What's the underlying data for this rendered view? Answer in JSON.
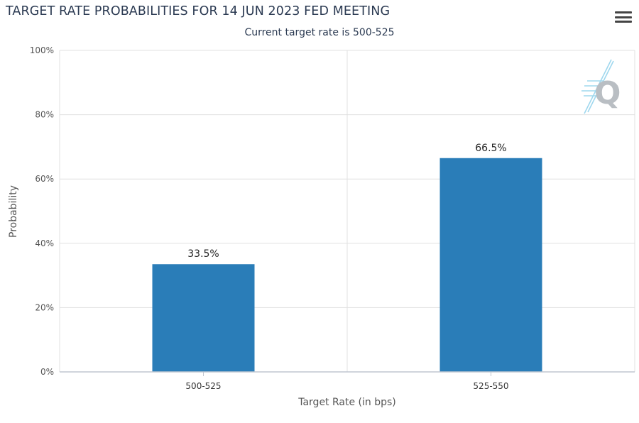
{
  "header": {
    "title": "TARGET RATE PROBABILITIES FOR 14 JUN 2023 FED MEETING",
    "subtitle": "Current target rate is 500-525",
    "menu_icon": "hamburger-menu-icon",
    "logo_text": "Q"
  },
  "chart_data": {
    "type": "bar",
    "title": "TARGET RATE PROBABILITIES FOR 14 JUN 2023 FED MEETING",
    "subtitle": "Current target rate is 500-525",
    "categories": [
      "500-525",
      "525-550"
    ],
    "values": [
      33.5,
      66.5
    ],
    "data_labels": [
      "33.5%",
      "66.5%"
    ],
    "xlabel": "Target Rate (in bps)",
    "ylabel": "Probability",
    "ylim": [
      0,
      100
    ],
    "yticks": [
      0,
      20,
      40,
      60,
      80,
      100
    ],
    "ytick_labels": [
      "0%",
      "20%",
      "40%",
      "60%",
      "80%",
      "100%"
    ],
    "grid": true,
    "bar_color": "#2a7db8",
    "grid_color": "#e0e0e0"
  }
}
